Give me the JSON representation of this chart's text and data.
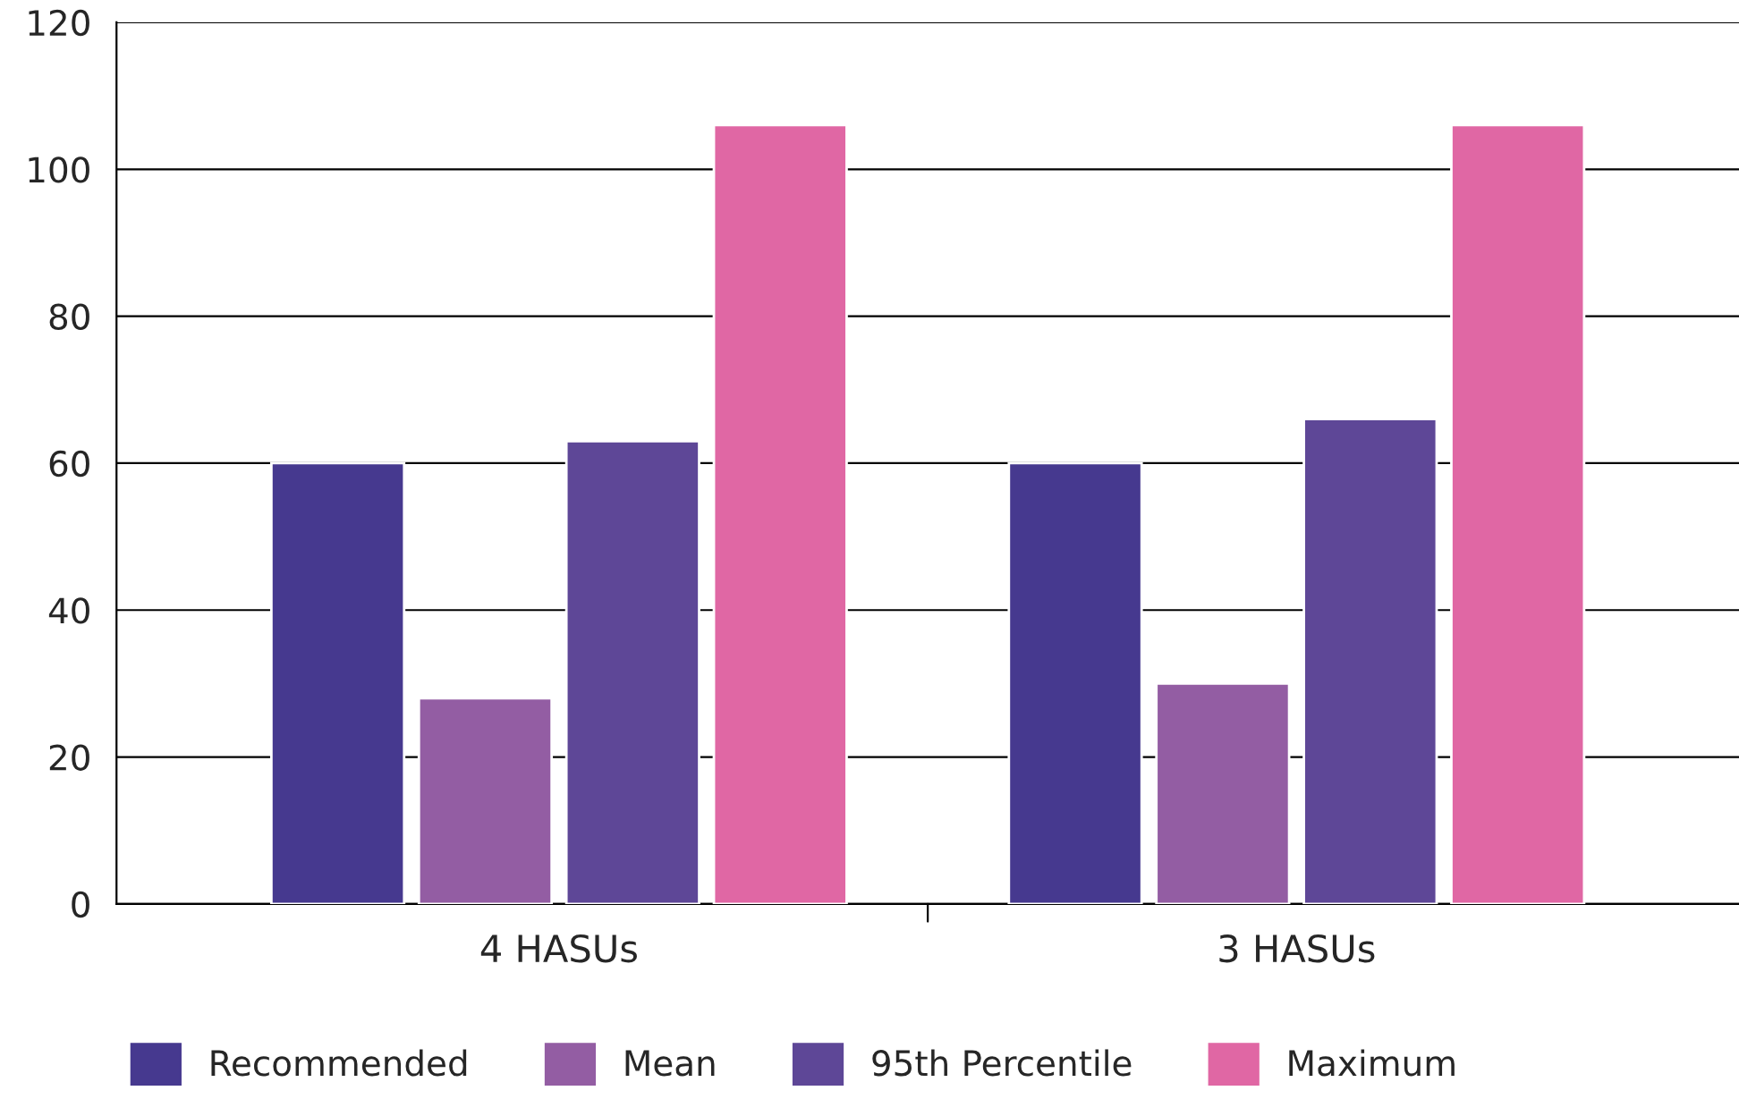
{
  "chart_data": {
    "type": "bar",
    "categories": [
      "4 HASUs",
      "3 HASUs"
    ],
    "series": [
      {
        "name": "Recommended",
        "color": "#46398f",
        "values": [
          60,
          60
        ]
      },
      {
        "name": "Mean",
        "color": "#935da3",
        "values": [
          28,
          30
        ]
      },
      {
        "name": "95th Percentile",
        "color": "#5e4797",
        "values": [
          63,
          66
        ]
      },
      {
        "name": "Maximum",
        "color": "#e067a4",
        "values": [
          106,
          106
        ]
      }
    ],
    "ylim": [
      0,
      120
    ],
    "yticks": [
      0,
      20,
      40,
      60,
      80,
      100,
      120
    ],
    "grid": "y",
    "legend": "bottom"
  }
}
